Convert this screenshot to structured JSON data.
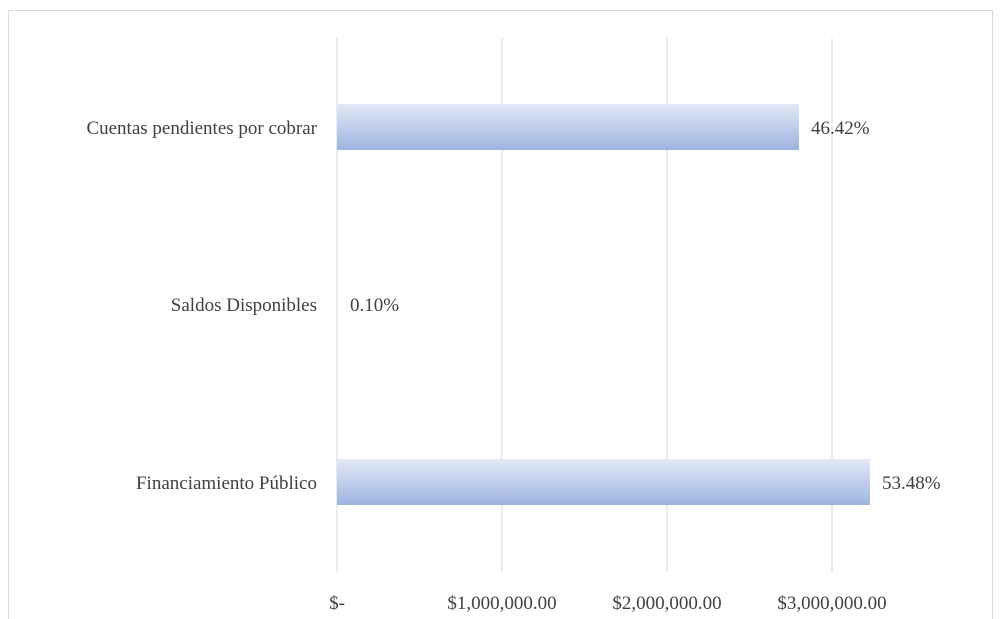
{
  "chart_data": {
    "type": "bar",
    "orientation": "horizontal",
    "categories": [
      "Cuentas pendientes por cobrar",
      "Saldos Disponibles",
      "Financiamiento Público"
    ],
    "values": [
      2800000,
      6000,
      3230000
    ],
    "data_labels": [
      "46.42%",
      "0.10%",
      "53.48%"
    ],
    "x_ticks": [
      0,
      1000000,
      2000000,
      3000000
    ],
    "x_tick_labels": [
      "$-",
      "$1,000,000.00",
      "$2,000,000.00",
      "$3,000,000.00"
    ],
    "xlim": [
      0,
      3000000
    ],
    "grid": true,
    "legend": "none",
    "title": "",
    "xlabel": "",
    "ylabel": "",
    "colors": {
      "bar_light": "#e3eaf7",
      "bar_dark": "#9db3e0",
      "grid": "#d9d9d9",
      "text": "#404040"
    }
  }
}
